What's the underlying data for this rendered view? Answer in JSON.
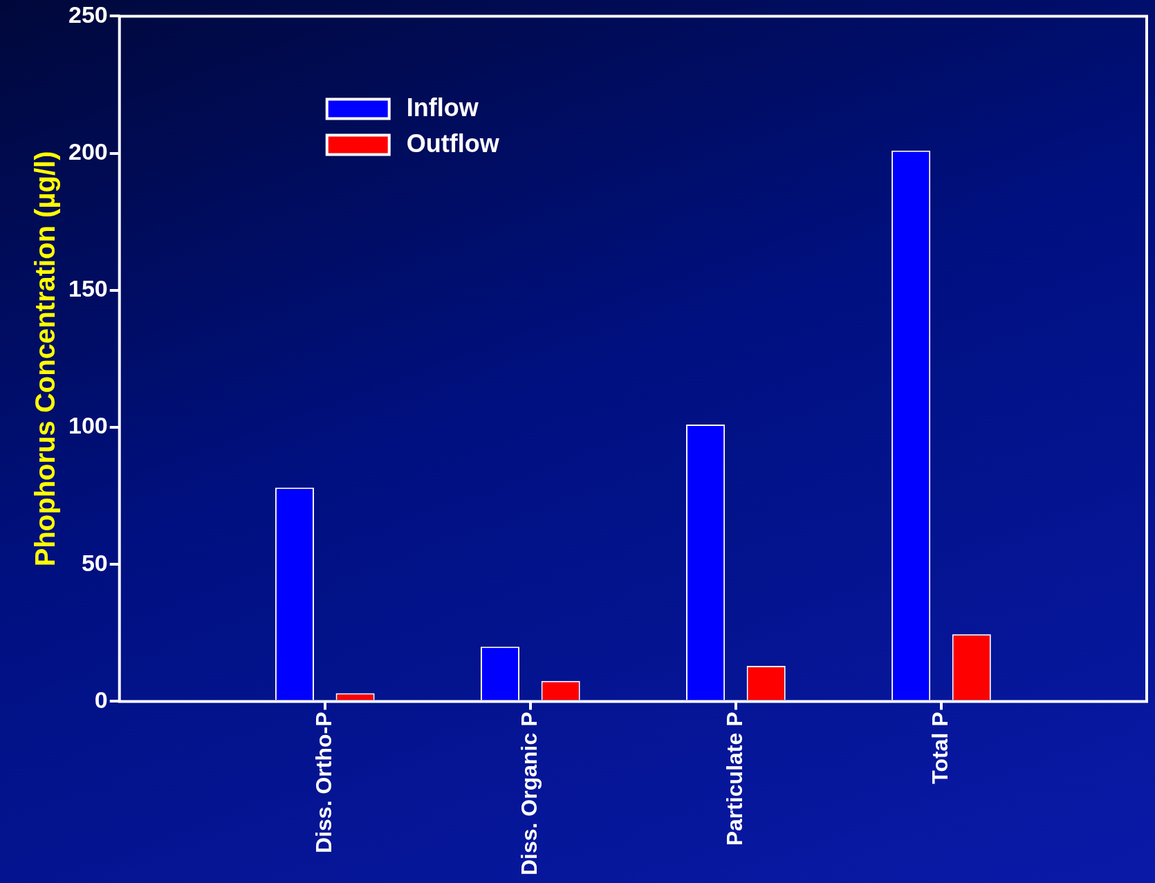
{
  "chart_data": {
    "type": "bar",
    "ylabel": "Phophorus Concentration (µg/l)",
    "categories": [
      "Diss. Ortho-P",
      "Diss. Organic P",
      "Particulate P",
      "Total P"
    ],
    "series": [
      {
        "name": "Inflow",
        "color": "#0000ff",
        "values": [
          78,
          20,
          101,
          201
        ]
      },
      {
        "name": "Outflow",
        "color": "#ff0000",
        "values": [
          3,
          7.5,
          13,
          24.5
        ]
      }
    ],
    "ylim": [
      0,
      250
    ],
    "yticks": [
      0,
      50,
      100,
      150,
      200,
      250
    ],
    "grid": false,
    "legend": "top left"
  }
}
